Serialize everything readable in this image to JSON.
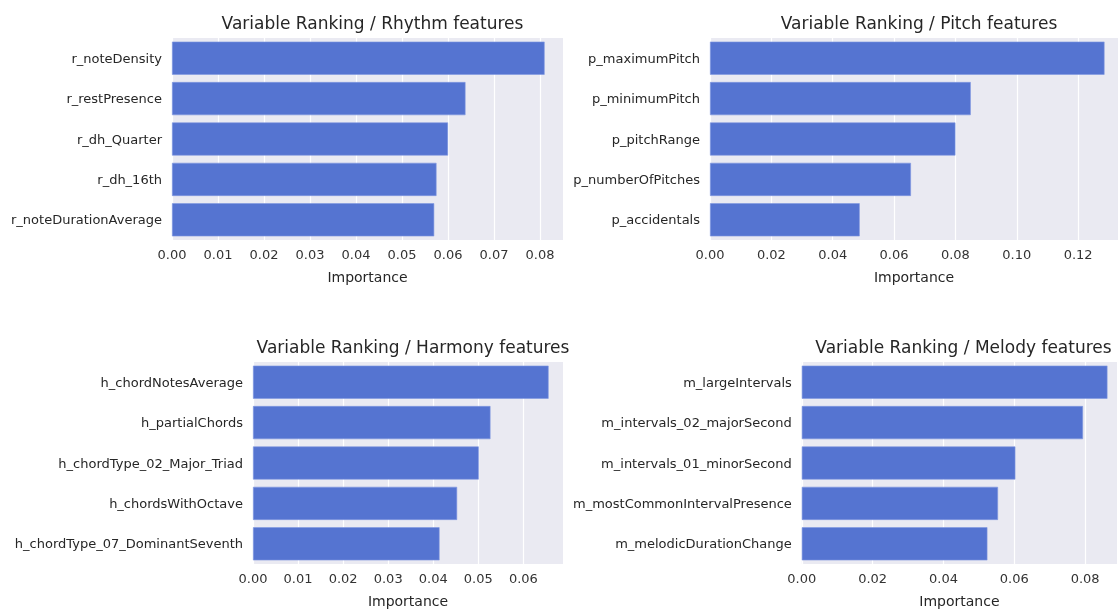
{
  "chart_data": [
    {
      "type": "bar",
      "orientation": "horizontal",
      "title": "Variable Ranking / Rhythm features",
      "xlabel": "Importance",
      "categories": [
        "r_noteDensity",
        "r_restPresence",
        "r_dh_Quarter",
        "r_dh_16th",
        "r_noteDurationAverage"
      ],
      "values": [
        0.081,
        0.0638,
        0.06,
        0.0575,
        0.057
      ],
      "color": "#5574d1",
      "xlim": [
        0,
        0.085
      ],
      "xticks": [
        {
          "value": 0,
          "label": "0.00"
        },
        {
          "value": 0.01,
          "label": "0.01"
        },
        {
          "value": 0.02,
          "label": "0.02"
        },
        {
          "value": 0.03,
          "label": "0.03"
        },
        {
          "value": 0.04,
          "label": "0.04"
        },
        {
          "value": 0.05,
          "label": "0.05"
        },
        {
          "value": 0.06,
          "label": "0.06"
        },
        {
          "value": 0.07,
          "label": "0.07"
        },
        {
          "value": 0.08,
          "label": "0.08"
        }
      ],
      "grid": "x"
    },
    {
      "type": "bar",
      "orientation": "horizontal",
      "title": "Variable Ranking / Pitch features",
      "xlabel": "Importance",
      "categories": [
        "p_maximumPitch",
        "p_minimumPitch",
        "p_pitchRange",
        "p_numberOfPitches",
        "p_accidentals"
      ],
      "values": [
        0.1286,
        0.085,
        0.08,
        0.0655,
        0.0488
      ],
      "color": "#5574d1",
      "xlim": [
        0,
        0.133
      ],
      "xticks": [
        {
          "value": 0,
          "label": "0.00"
        },
        {
          "value": 0.02,
          "label": "0.02"
        },
        {
          "value": 0.04,
          "label": "0.04"
        },
        {
          "value": 0.06,
          "label": "0.06"
        },
        {
          "value": 0.08,
          "label": "0.08"
        },
        {
          "value": 0.1,
          "label": "0.10"
        },
        {
          "value": 0.12,
          "label": "0.12"
        }
      ],
      "grid": "x"
    },
    {
      "type": "bar",
      "orientation": "horizontal",
      "title": "Variable Ranking / Harmony features",
      "xlabel": "Importance",
      "categories": [
        "h_chordNotesAverage",
        "h_partialChords",
        "h_chordType_02_Major_Triad",
        "h_chordsWithOctave",
        "h_chordType_07_DominantSeventh"
      ],
      "values": [
        0.0656,
        0.0527,
        0.0501,
        0.0453,
        0.0414
      ],
      "color": "#5574d1",
      "xlim": [
        0,
        0.0688
      ],
      "xticks": [
        {
          "value": 0,
          "label": "0.00"
        },
        {
          "value": 0.01,
          "label": "0.01"
        },
        {
          "value": 0.02,
          "label": "0.02"
        },
        {
          "value": 0.03,
          "label": "0.03"
        },
        {
          "value": 0.04,
          "label": "0.04"
        },
        {
          "value": 0.05,
          "label": "0.05"
        },
        {
          "value": 0.06,
          "label": "0.06"
        }
      ],
      "grid": "x"
    },
    {
      "type": "bar",
      "orientation": "horizontal",
      "title": "Variable Ranking / Melody features",
      "xlabel": "Importance",
      "categories": [
        "m_largeIntervals",
        "m_intervals_02_majorSecond",
        "m_intervals_01_minorSecond",
        "m_mostCommonIntervalPresence",
        "m_melodicDurationChange"
      ],
      "values": [
        0.0863,
        0.0794,
        0.0603,
        0.0554,
        0.0524
      ],
      "color": "#5574d1",
      "xlim": [
        0,
        0.089
      ],
      "xticks": [
        {
          "value": 0,
          "label": "0.00"
        },
        {
          "value": 0.02,
          "label": "0.02"
        },
        {
          "value": 0.04,
          "label": "0.04"
        },
        {
          "value": 0.06,
          "label": "0.06"
        },
        {
          "value": 0.08,
          "label": "0.08"
        }
      ],
      "grid": "x"
    }
  ]
}
